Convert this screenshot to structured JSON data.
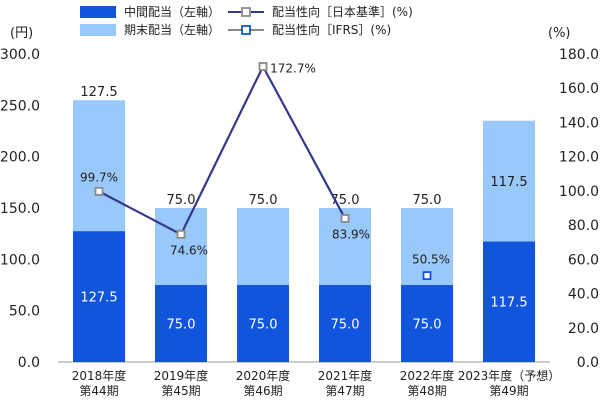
{
  "chart_data": {
    "type": "bar",
    "stacked": true,
    "categories": [
      [
        "2018年度",
        "第44期"
      ],
      [
        "2019年度",
        "第45期"
      ],
      [
        "2020年度",
        "第46期"
      ],
      [
        "2021年度",
        "第47期"
      ],
      [
        "2022年度",
        "第48期"
      ],
      [
        "2023年度（予想）",
        "第49期"
      ]
    ],
    "y_left": {
      "unit": "(円)",
      "lim": [
        0,
        300
      ],
      "ticks": [
        "0.0",
        "50.0",
        "100.0",
        "150.0",
        "200.0",
        "250.0",
        "300.0"
      ]
    },
    "y_right": {
      "unit": "(%)",
      "lim": [
        0,
        180
      ],
      "ticks": [
        "0.0",
        "20.0",
        "40.0",
        "60.0",
        "80.0",
        "100.0",
        "120.0",
        "140.0",
        "160.0",
        "180.0"
      ]
    },
    "series": [
      {
        "name": "中間配当（左軸）",
        "kind": "bar",
        "color": "#1155dd",
        "values": [
          127.5,
          75.0,
          75.0,
          75.0,
          75.0,
          117.5
        ],
        "labels": [
          "127.5",
          "75.0",
          "75.0",
          "75.0",
          "75.0",
          "117.5"
        ]
      },
      {
        "name": "期末配当（左軸）",
        "kind": "bar",
        "color": "#99c8fa",
        "values": [
          127.5,
          75.0,
          75.0,
          75.0,
          75.0,
          117.5
        ],
        "labels": [
          "127.5",
          "75.0",
          "75.0",
          "75.0",
          "75.0",
          "117.5"
        ]
      },
      {
        "name": "配当性向［日本基準］(%)",
        "kind": "line",
        "color": "#333a8a",
        "marker": "#8a8a8a",
        "values": [
          99.7,
          74.6,
          172.7,
          83.9,
          null,
          null
        ],
        "labels": [
          "99.7%",
          "74.6%",
          "172.7%",
          "83.9%",
          "",
          ""
        ]
      },
      {
        "name": "配当性向［IFRS］(%)",
        "kind": "point",
        "color": "#1155dd",
        "values": [
          null,
          null,
          null,
          null,
          50.5,
          null
        ],
        "labels": [
          "",
          "",
          "",
          "",
          "50.5%",
          ""
        ]
      }
    ],
    "grid": false,
    "legend": "top"
  }
}
